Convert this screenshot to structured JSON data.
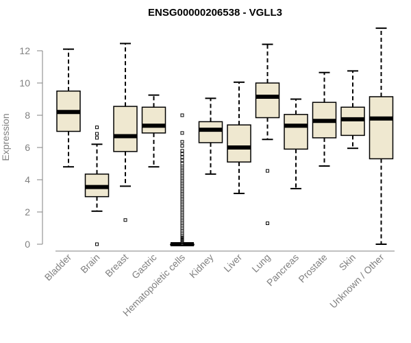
{
  "chart_data": {
    "type": "boxplot",
    "title": "ENSG00000206538 - VGLL3",
    "xlabel": "",
    "ylabel": "Expression",
    "ylim": [
      0,
      13.5
    ],
    "yticks": [
      0,
      2,
      4,
      6,
      8,
      10,
      12
    ],
    "grid": false,
    "legend": "none",
    "colors": {
      "box_fill": "#efe8d0",
      "outline": "#000000",
      "median": "#000000",
      "axis": "#808080"
    },
    "categories": [
      "Bladder",
      "Brain",
      "Breast",
      "Gastric",
      "Hematopoietic cells",
      "Kidney",
      "Liver",
      "Lung",
      "Pancreas",
      "Prostate",
      "Skin",
      "Unknown / Other"
    ],
    "boxes": [
      {
        "category": "Bladder",
        "whisker_low": 4.8,
        "q1": 7.0,
        "median": 8.2,
        "q3": 9.5,
        "whisker_high": 12.1,
        "outliers": []
      },
      {
        "category": "Brain",
        "whisker_low": 2.05,
        "q1": 2.95,
        "median": 3.55,
        "q3": 4.35,
        "whisker_high": 6.2,
        "outliers": [
          0.0,
          6.6,
          6.85,
          7.25
        ]
      },
      {
        "category": "Breast",
        "whisker_low": 3.6,
        "q1": 5.75,
        "median": 6.7,
        "q3": 8.55,
        "whisker_high": 12.45,
        "outliers": [
          1.5
        ]
      },
      {
        "category": "Gastric",
        "whisker_low": 4.8,
        "q1": 6.9,
        "median": 7.35,
        "q3": 8.5,
        "whisker_high": 9.25,
        "outliers": []
      },
      {
        "category": "Hematopoietic cells",
        "whisker_low": 0.0,
        "q1": 0.0,
        "median": 0.0,
        "q3": 0.0,
        "whisker_high": 0.0,
        "outliers": [
          0.05,
          0.1,
          0.15,
          0.2,
          0.25,
          0.3,
          0.35,
          0.4,
          0.45,
          0.5,
          0.55,
          0.6,
          0.7,
          0.8,
          0.9,
          1.0,
          1.1,
          1.2,
          1.3,
          1.4,
          1.5,
          1.6,
          1.7,
          1.8,
          1.9,
          2.0,
          2.1,
          2.2,
          2.3,
          2.4,
          2.5,
          2.6,
          2.7,
          2.8,
          2.9,
          3.0,
          3.1,
          3.2,
          3.3,
          3.4,
          3.5,
          3.6,
          3.7,
          3.8,
          3.9,
          4.0,
          4.1,
          4.2,
          4.3,
          4.4,
          4.5,
          4.6,
          4.7,
          4.8,
          4.9,
          5.0,
          5.2,
          5.4,
          5.6,
          5.8,
          6.1,
          6.35,
          6.9,
          8.0
        ]
      },
      {
        "category": "Kidney",
        "whisker_low": 4.35,
        "q1": 6.3,
        "median": 7.1,
        "q3": 7.6,
        "whisker_high": 9.05,
        "outliers": []
      },
      {
        "category": "Liver",
        "whisker_low": 3.15,
        "q1": 5.1,
        "median": 6.0,
        "q3": 7.4,
        "whisker_high": 10.05,
        "outliers": []
      },
      {
        "category": "Lung",
        "whisker_low": 6.5,
        "q1": 7.85,
        "median": 9.15,
        "q3": 10.0,
        "whisker_high": 12.4,
        "outliers": [
          4.55,
          1.3
        ]
      },
      {
        "category": "Pancreas",
        "whisker_low": 3.45,
        "q1": 5.9,
        "median": 7.35,
        "q3": 8.05,
        "whisker_high": 9.0,
        "outliers": []
      },
      {
        "category": "Prostate",
        "whisker_low": 4.85,
        "q1": 6.6,
        "median": 7.65,
        "q3": 8.8,
        "whisker_high": 10.65,
        "outliers": []
      },
      {
        "category": "Skin",
        "whisker_low": 5.95,
        "q1": 6.75,
        "median": 7.75,
        "q3": 8.5,
        "whisker_high": 10.75,
        "outliers": []
      },
      {
        "category": "Unknown / Other",
        "whisker_low": 0.0,
        "q1": 5.3,
        "median": 7.8,
        "q3": 9.15,
        "whisker_high": 13.4,
        "outliers": []
      }
    ]
  }
}
